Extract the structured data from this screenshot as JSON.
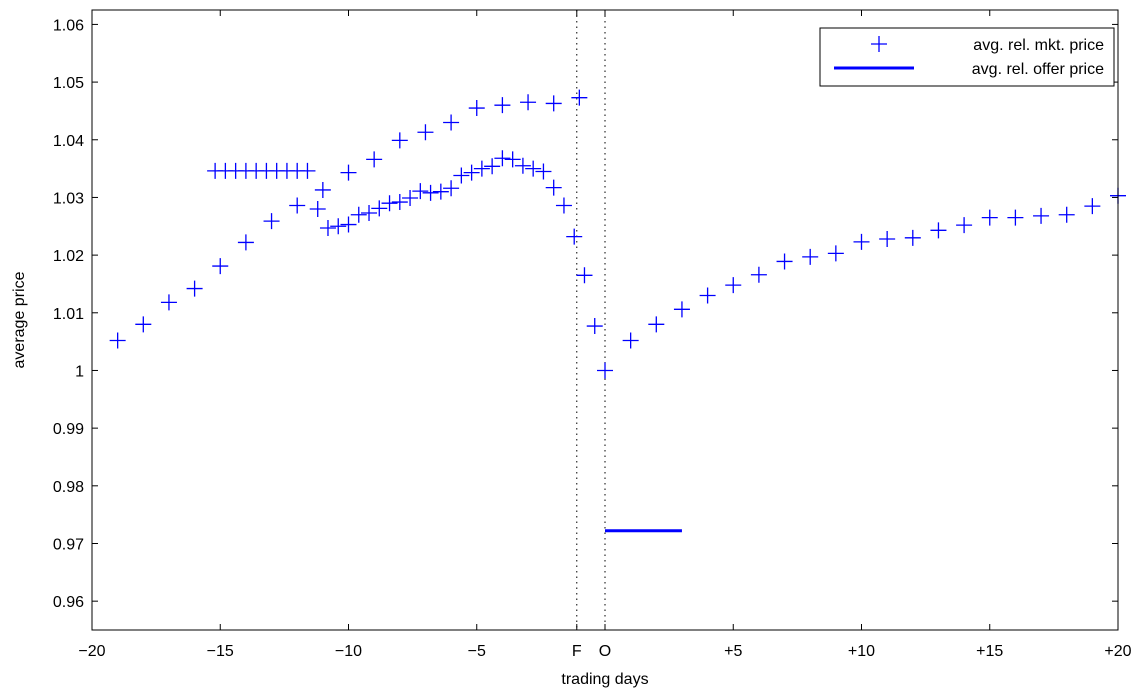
{
  "chart_data": {
    "type": "scatter",
    "xlabel": "trading days",
    "ylabel": "average price",
    "xlim": [
      -20,
      20
    ],
    "ylim": [
      0.955,
      1.0625
    ],
    "grid": false,
    "legend_position": "top-right",
    "x_ticks": [
      {
        "pos": -20,
        "label": "−20"
      },
      {
        "pos": -15,
        "label": "−15"
      },
      {
        "pos": -10,
        "label": "−10"
      },
      {
        "pos": -5,
        "label": "−5"
      },
      {
        "pos": -1.1,
        "label": "F"
      },
      {
        "pos": 0,
        "label": "O"
      },
      {
        "pos": 5,
        "label": "+5"
      },
      {
        "pos": 10,
        "label": "+10"
      },
      {
        "pos": 15,
        "label": "+15"
      },
      {
        "pos": 20,
        "label": "+20"
      }
    ],
    "y_ticks": [
      {
        "pos": 0.96,
        "label": "0.96"
      },
      {
        "pos": 0.97,
        "label": "0.97"
      },
      {
        "pos": 0.98,
        "label": "0.98"
      },
      {
        "pos": 0.99,
        "label": "0.99"
      },
      {
        "pos": 1.0,
        "label": "1"
      },
      {
        "pos": 1.01,
        "label": "1.01"
      },
      {
        "pos": 1.02,
        "label": "1.02"
      },
      {
        "pos": 1.03,
        "label": "1.03"
      },
      {
        "pos": 1.04,
        "label": "1.04"
      },
      {
        "pos": 1.05,
        "label": "1.05"
      },
      {
        "pos": 1.06,
        "label": "1.06"
      }
    ],
    "vlines": [
      {
        "x": -1.1,
        "style": "dotted"
      },
      {
        "x": 0,
        "style": "dotted"
      }
    ],
    "series": [
      {
        "name": "avg. rel. mkt. price",
        "kind": "marker",
        "marker": "plus",
        "color": "#0000ff",
        "x": [
          -19,
          -18,
          -17,
          -16,
          -15,
          -14,
          -13,
          -12,
          -11,
          -10,
          -9,
          -8,
          -7,
          -6,
          -5,
          -4,
          -3,
          -2,
          -1,
          0,
          1,
          2,
          3,
          4,
          5,
          6,
          7,
          8,
          9,
          10,
          11,
          12,
          13,
          14,
          15,
          16,
          17,
          18,
          19,
          20
        ],
        "y": [
          1.0052,
          1.008,
          1.0118,
          1.0142,
          1.0181,
          1.0222,
          1.0259,
          1.0286,
          1.0313,
          1.0343,
          1.0366,
          1.0399,
          1.0413,
          1.043,
          1.0455,
          1.046,
          1.0465,
          1.0463,
          1.0473,
          1.0,
          1.0052,
          1.008,
          1.0106,
          1.013,
          1.0148,
          1.0166,
          1.0189,
          1.0197,
          1.0203,
          1.0223,
          1.0228,
          1.023,
          1.0243,
          1.0252,
          1.0265,
          1.0265,
          1.0268,
          1.027,
          1.0285,
          1.0303
        ]
      },
      {
        "name": "",
        "kind": "marker",
        "marker": "plus",
        "color": "#0000ff",
        "x": [
          -0.4,
          -0.8,
          -1.2,
          -1.6,
          -2.0,
          -2.4,
          -2.8,
          -3.2,
          -3.6,
          -4.0,
          -4.4,
          -4.8,
          -5.2,
          -5.6,
          -6.0,
          -6.4,
          -6.8,
          -7.2,
          -7.6,
          -8.0,
          -8.4,
          -8.8,
          -9.2,
          -9.6,
          -10.0,
          -10.4,
          -10.8,
          -11.2,
          -11.6,
          -12.0,
          -12.4,
          -12.8,
          -13.2,
          -13.6,
          -14.0,
          -14.4,
          -14.8,
          -15.2
        ],
        "y": [
          1.0077,
          1.0165,
          1.0232,
          1.0286,
          1.0317,
          1.0345,
          1.035,
          1.0355,
          1.0366,
          1.0368,
          1.0354,
          1.035,
          1.0343,
          1.0338,
          1.0316,
          1.031,
          1.0308,
          1.0311,
          1.0299,
          1.0292,
          1.029,
          1.0281,
          1.0273,
          1.027,
          1.0253,
          1.025,
          1.0247,
          1.028,
          1.0346,
          1.0346,
          1.0346,
          1.0346,
          1.0346,
          1.0346,
          1.0346,
          1.0346,
          1.0346,
          1.0346
        ]
      },
      {
        "name": "avg. rel. offer price",
        "kind": "line",
        "color": "#0000ff",
        "x": [
          0,
          3
        ],
        "y": [
          0.9722,
          0.9722
        ]
      }
    ]
  }
}
